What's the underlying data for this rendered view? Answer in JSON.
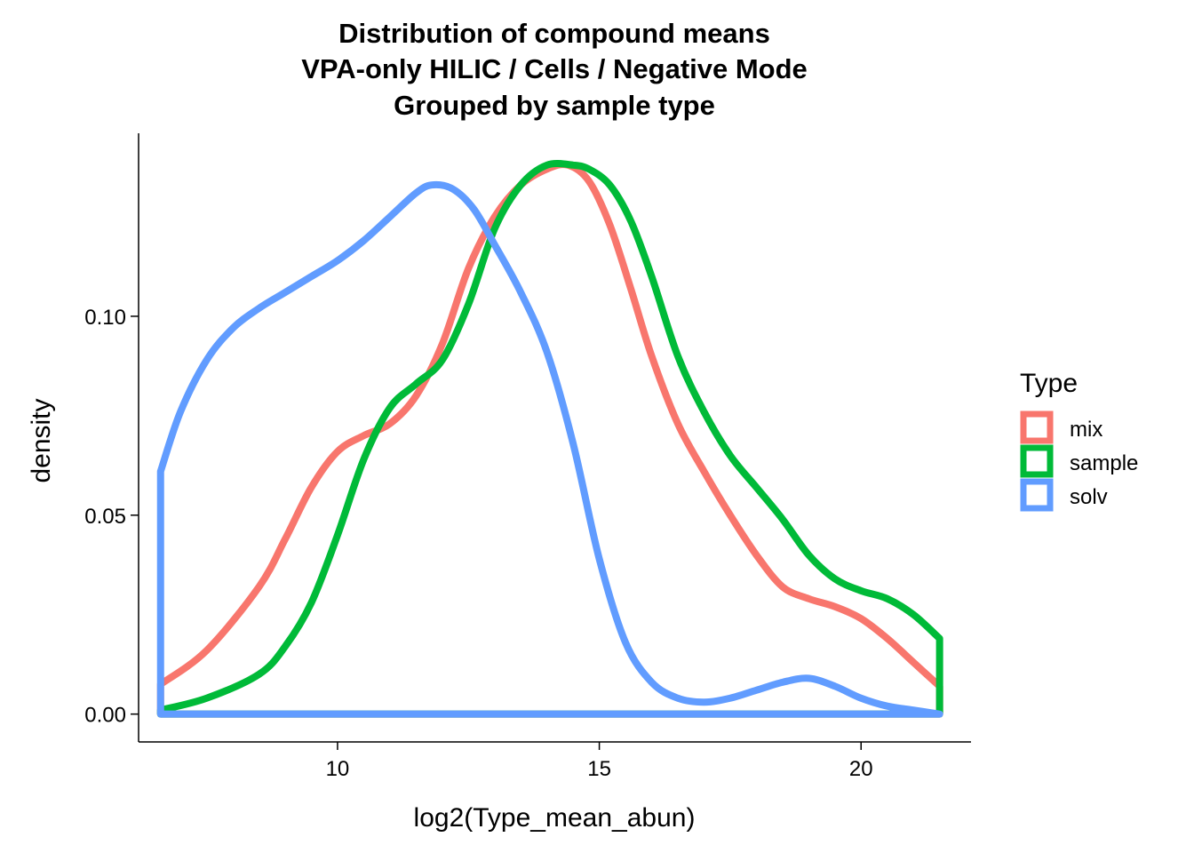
{
  "chart_data": {
    "type": "line",
    "subtype": "density",
    "title": [
      "Distribution of compound means",
      "VPA-only HILIC / Cells / Negative Mode",
      "Grouped by sample type"
    ],
    "xlabel": "log2(Type_mean_abun)",
    "ylabel": "density",
    "xlim": [
      6.2,
      22.1
    ],
    "ylim": [
      -0.007,
      0.146
    ],
    "x_ticks": [
      10,
      15,
      20
    ],
    "x_tick_labels": [
      "10",
      "15",
      "20"
    ],
    "y_ticks": [
      0.0,
      0.05,
      0.1
    ],
    "y_tick_labels": [
      "0.00",
      "0.05",
      "0.10"
    ],
    "grid": false,
    "legend": {
      "title": "Type",
      "position": "right"
    },
    "series": [
      {
        "name": "mix",
        "color": "#F8766D",
        "x": [
          6.62,
          7.5,
          8.5,
          9.0,
          9.5,
          10.0,
          10.5,
          11.0,
          11.5,
          12.0,
          12.5,
          13.0,
          13.5,
          14.0,
          14.4,
          14.8,
          15.2,
          15.6,
          16.0,
          16.5,
          17.0,
          17.5,
          18.0,
          18.5,
          19.0,
          19.5,
          20.0,
          20.5,
          21.0,
          21.5
        ],
        "y": [
          0.0075,
          0.016,
          0.032,
          0.044,
          0.057,
          0.066,
          0.07,
          0.073,
          0.08,
          0.093,
          0.112,
          0.125,
          0.133,
          0.137,
          0.138,
          0.134,
          0.123,
          0.107,
          0.09,
          0.073,
          0.061,
          0.05,
          0.04,
          0.032,
          0.029,
          0.027,
          0.024,
          0.019,
          0.013,
          0.007
        ]
      },
      {
        "name": "sample",
        "color": "#00BA38",
        "x": [
          6.62,
          7.5,
          8.5,
          9.0,
          9.5,
          10.0,
          10.5,
          11.0,
          11.5,
          12.0,
          12.5,
          13.0,
          13.5,
          14.0,
          14.5,
          14.8,
          15.2,
          15.6,
          16.0,
          16.5,
          17.0,
          17.5,
          18.0,
          18.5,
          19.0,
          19.5,
          20.0,
          20.5,
          21.0,
          21.5
        ],
        "y": [
          0.001,
          0.004,
          0.01,
          0.017,
          0.028,
          0.045,
          0.064,
          0.077,
          0.083,
          0.089,
          0.103,
          0.122,
          0.133,
          0.138,
          0.138,
          0.137,
          0.133,
          0.124,
          0.11,
          0.09,
          0.076,
          0.065,
          0.057,
          0.049,
          0.04,
          0.034,
          0.031,
          0.029,
          0.025,
          0.019
        ]
      },
      {
        "name": "solv",
        "color": "#619CFF",
        "x": [
          6.62,
          7.0,
          7.5,
          8.0,
          8.5,
          9.0,
          9.5,
          10.0,
          10.5,
          11.0,
          11.5,
          11.8,
          12.2,
          12.6,
          13.0,
          13.5,
          14.0,
          14.5,
          15.0,
          15.5,
          16.0,
          16.5,
          17.0,
          17.5,
          18.0,
          18.5,
          19.0,
          19.5,
          20.0,
          20.5,
          21.0,
          21.5
        ],
        "y": [
          0.061,
          0.076,
          0.089,
          0.097,
          0.102,
          0.106,
          0.11,
          0.114,
          0.119,
          0.125,
          0.131,
          0.133,
          0.132,
          0.127,
          0.118,
          0.106,
          0.091,
          0.068,
          0.039,
          0.018,
          0.008,
          0.004,
          0.003,
          0.004,
          0.006,
          0.008,
          0.009,
          0.007,
          0.004,
          0.002,
          0.001,
          0.0
        ]
      }
    ]
  }
}
